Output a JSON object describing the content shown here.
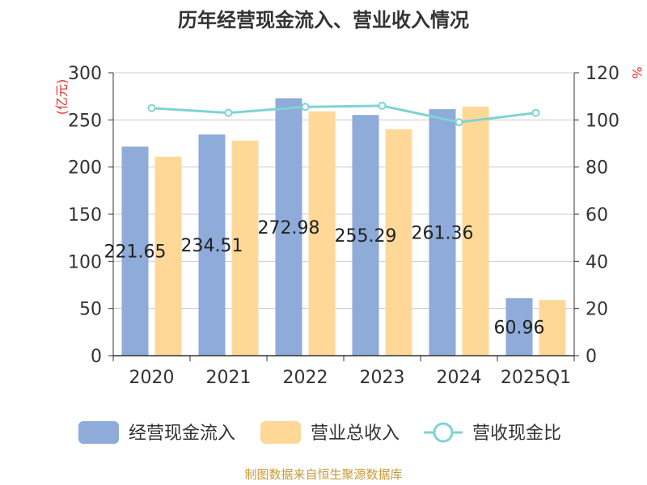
{
  "chart_data": {
    "type": "bar",
    "title": "历年经营现金流入、营业收入情况",
    "categories": [
      "2020",
      "2021",
      "2022",
      "2023",
      "2024",
      "2025Q1"
    ],
    "series": [
      {
        "name": "经营现金流入",
        "type": "bar",
        "axis": "left",
        "color": "#8eabd9",
        "values": [
          221.65,
          234.51,
          272.98,
          255.29,
          261.36,
          60.96
        ],
        "labels": [
          "221.65",
          "234.51",
          "272.98",
          "255.29",
          "261.36",
          "60.96"
        ]
      },
      {
        "name": "营业总收入",
        "type": "bar",
        "axis": "left",
        "color": "#ffd898",
        "values": [
          211,
          228,
          259,
          240,
          264,
          59
        ]
      },
      {
        "name": "营收现金比",
        "type": "line",
        "axis": "right",
        "color": "#7fd3d3",
        "values": [
          105,
          103,
          105.5,
          106,
          99,
          103
        ]
      }
    ],
    "y_left": {
      "unit": "(亿元)",
      "range": [
        0,
        300
      ],
      "ticks": [
        "0",
        "50",
        "100",
        "150",
        "200",
        "250",
        "300"
      ]
    },
    "y_right": {
      "unit": "%",
      "range": [
        0,
        120
      ],
      "ticks": [
        "0",
        "20",
        "40",
        "60",
        "80",
        "100",
        "120"
      ]
    },
    "grid": true,
    "legend_position": "bottom"
  },
  "source": "制图数据来自恒生聚源数据库"
}
